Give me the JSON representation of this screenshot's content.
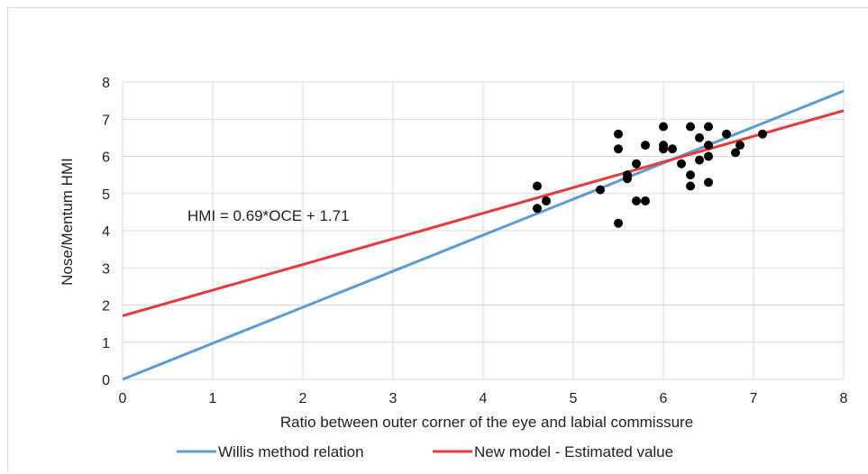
{
  "chart_data": {
    "type": "scatter",
    "xlabel": "Ratio between outer corner of the eye and labial commissure",
    "ylabel": "Nose/Mentum HMI",
    "xlim": [
      0,
      8
    ],
    "ylim": [
      0,
      8
    ],
    "x_ticks": [
      "0",
      "1",
      "2",
      "3",
      "4",
      "5",
      "6",
      "7",
      "8"
    ],
    "y_ticks": [
      "0",
      "1",
      "2",
      "3",
      "4",
      "5",
      "6",
      "7",
      "8"
    ],
    "grid": true,
    "legend_position": "bottom",
    "annotation": "HMI = 0.69*OCE + 1.71",
    "points": [
      {
        "x": 4.6,
        "y": 5.2
      },
      {
        "x": 4.6,
        "y": 4.6
      },
      {
        "x": 4.7,
        "y": 4.8
      },
      {
        "x": 5.3,
        "y": 5.1
      },
      {
        "x": 5.5,
        "y": 6.6
      },
      {
        "x": 5.5,
        "y": 6.2
      },
      {
        "x": 5.5,
        "y": 4.2
      },
      {
        "x": 5.6,
        "y": 5.5
      },
      {
        "x": 5.6,
        "y": 5.4
      },
      {
        "x": 5.7,
        "y": 5.8
      },
      {
        "x": 5.7,
        "y": 4.8
      },
      {
        "x": 5.8,
        "y": 6.3
      },
      {
        "x": 5.8,
        "y": 4.8
      },
      {
        "x": 6.0,
        "y": 6.8
      },
      {
        "x": 6.0,
        "y": 6.3
      },
      {
        "x": 6.0,
        "y": 6.2
      },
      {
        "x": 6.1,
        "y": 6.2
      },
      {
        "x": 6.2,
        "y": 5.8
      },
      {
        "x": 6.3,
        "y": 6.8
      },
      {
        "x": 6.3,
        "y": 5.5
      },
      {
        "x": 6.3,
        "y": 5.2
      },
      {
        "x": 6.4,
        "y": 6.5
      },
      {
        "x": 6.4,
        "y": 5.9
      },
      {
        "x": 6.5,
        "y": 6.8
      },
      {
        "x": 6.5,
        "y": 6.3
      },
      {
        "x": 6.5,
        "y": 6.0
      },
      {
        "x": 6.5,
        "y": 5.3
      },
      {
        "x": 6.7,
        "y": 6.6
      },
      {
        "x": 6.8,
        "y": 6.1
      },
      {
        "x": 6.85,
        "y": 6.3
      },
      {
        "x": 7.1,
        "y": 6.6
      }
    ],
    "series": [
      {
        "name": "Willis method relation",
        "type": "line",
        "color": "#5b9bd5",
        "slope": 0.97,
        "intercept": 0
      },
      {
        "name": "New model - Estimated value",
        "type": "line",
        "color": "#e8383d",
        "slope": 0.69,
        "intercept": 1.71
      }
    ],
    "point_color": "#000000"
  }
}
